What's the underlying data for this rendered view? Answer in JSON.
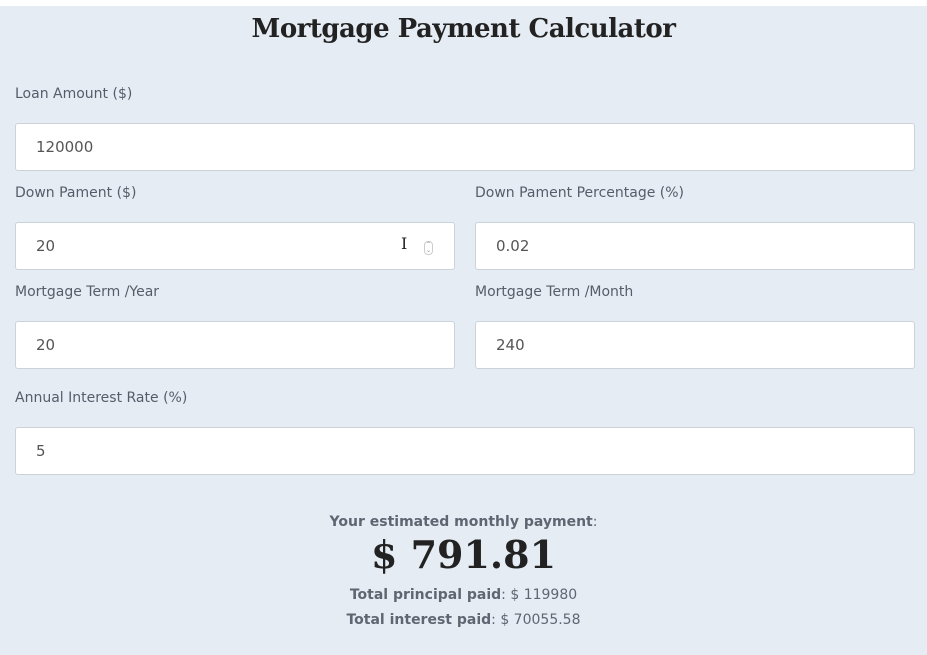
{
  "title": "Mortgage Payment Calculator",
  "fields": {
    "loan_amount": {
      "label": "Loan Amount ($)",
      "value": "120000"
    },
    "down_payment": {
      "label": "Down Pament ($)",
      "value": "20"
    },
    "down_payment_pct": {
      "label": "Down Pament Percentage (%)",
      "value": "0.02"
    },
    "term_year": {
      "label": "Mortgage Term /Year",
      "value": "20"
    },
    "term_month": {
      "label": "Mortgage Term /Month",
      "value": "240"
    },
    "interest_rate": {
      "label": "Annual Interest Rate (%)",
      "value": "5"
    }
  },
  "result": {
    "monthly_label": "Your estimated monthly payment",
    "monthly_value": "$ 791.81",
    "principal_label": "Total principal paid",
    "principal_value": "$ 119980",
    "interest_label": "Total interest paid",
    "interest_value": "$ 70055.58"
  }
}
